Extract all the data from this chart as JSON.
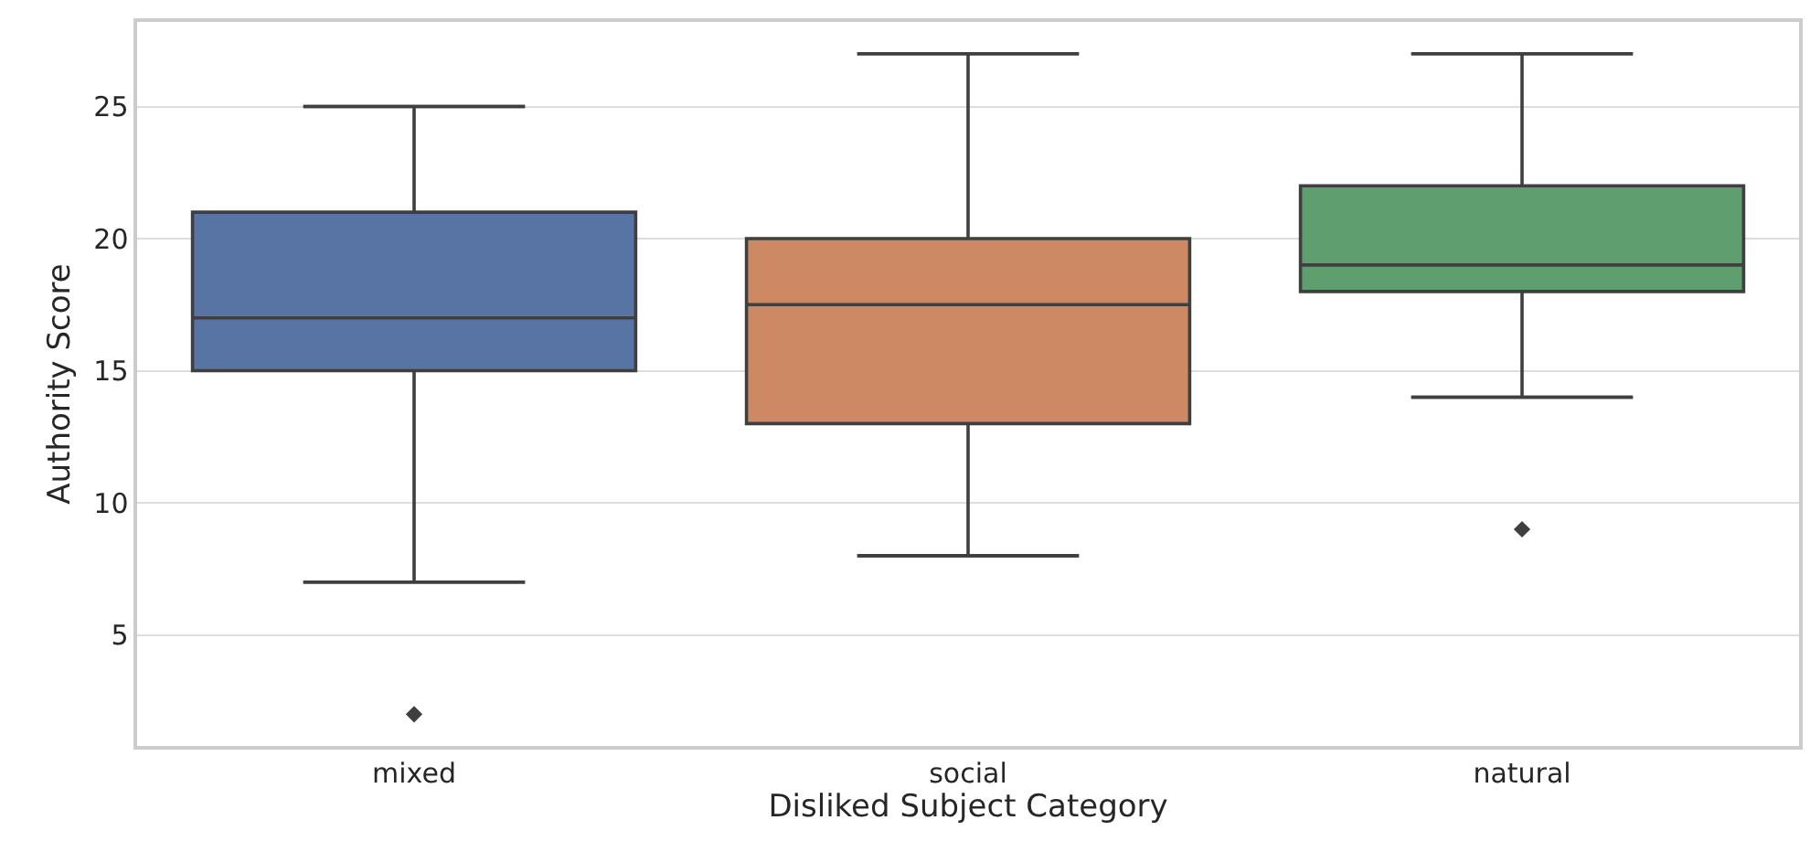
{
  "chart_data": {
    "type": "box",
    "xlabel": "Disliked Subject Category",
    "ylabel": "Authority Score",
    "categories": [
      "mixed",
      "social",
      "natural"
    ],
    "colors": [
      "#5874a5",
      "#cd8963",
      "#5f9e6e"
    ],
    "boxes": [
      {
        "low": 7,
        "q1": 15,
        "median": 17,
        "q3": 21,
        "high": 25,
        "outliers": [
          2
        ]
      },
      {
        "low": 8,
        "q1": 13,
        "median": 17.5,
        "q3": 20,
        "high": 27
      },
      {
        "low": 14,
        "q1": 18,
        "median": 19,
        "q3": 22,
        "high": 27,
        "outliers": [
          9
        ]
      }
    ],
    "ylim": [
      0.8,
      28.2
    ],
    "yticks": [
      5,
      10,
      15,
      20,
      25
    ],
    "grid": "y"
  }
}
